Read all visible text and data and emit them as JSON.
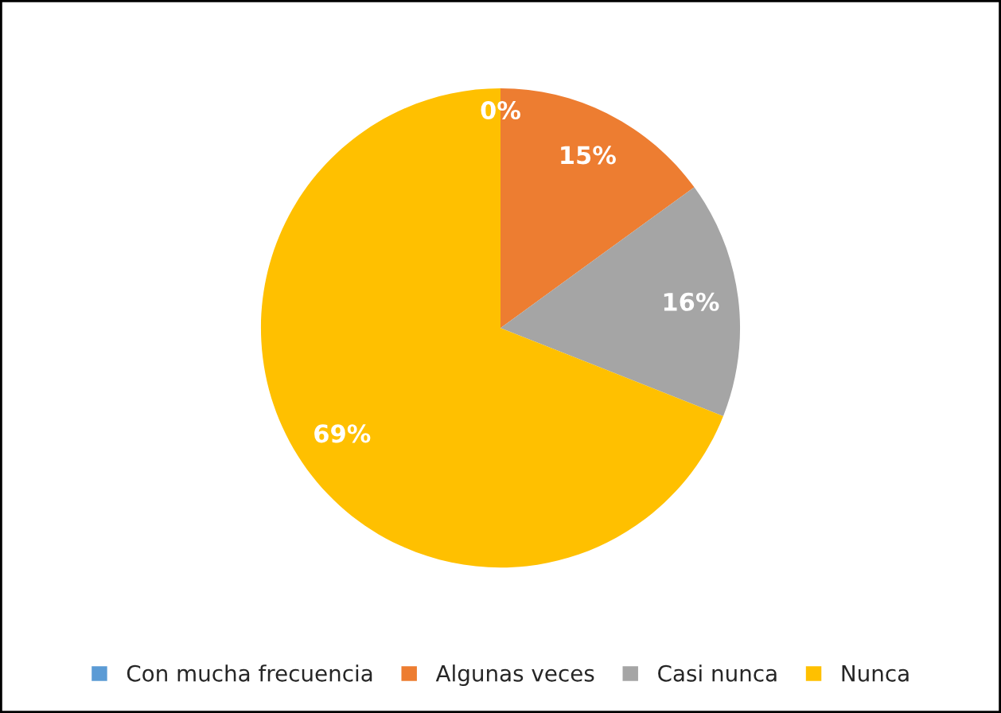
{
  "chart_data": {
    "type": "pie",
    "categories": [
      "Con mucha frecuencia",
      "Algunas veces",
      "Casi nunca",
      "Nunca"
    ],
    "values": [
      0,
      15,
      16,
      69
    ],
    "colors": [
      "#5b9bd5",
      "#ed7d31",
      "#a5a5a5",
      "#ffc000"
    ],
    "value_labels": [
      "0%",
      "15%",
      "16%",
      "69%"
    ],
    "legend": "bottom"
  }
}
